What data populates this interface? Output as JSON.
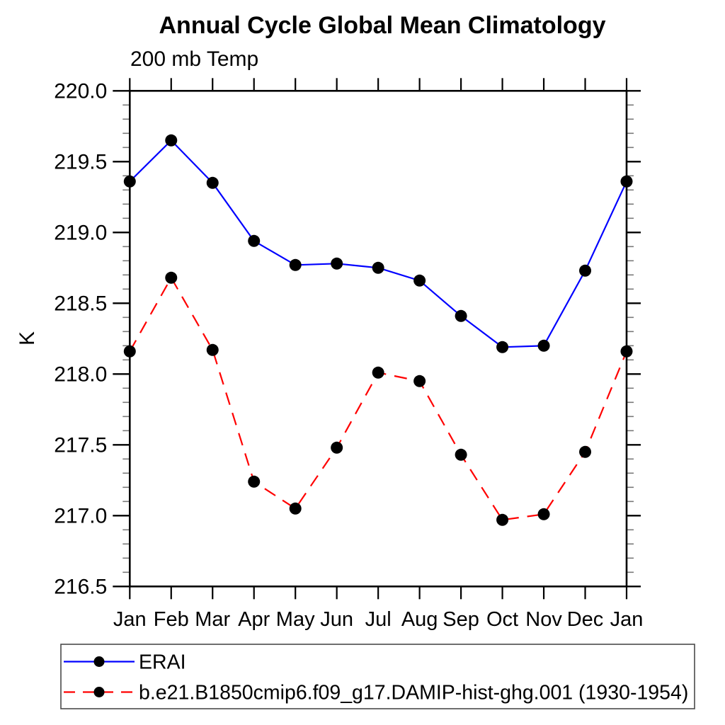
{
  "chart_data": {
    "type": "line",
    "title": "Annual Cycle Global Mean Climatology",
    "subtitle": "200 mb Temp",
    "xlabel": "",
    "ylabel": "K",
    "ylim": [
      216.5,
      220.0
    ],
    "ytick_step": 0.5,
    "ytick_minor_step": 0.1,
    "ytick_labels": [
      "220.0",
      "219.5",
      "219.0",
      "218.5",
      "218.0",
      "217.5",
      "217.0",
      "216.5"
    ],
    "grid": false,
    "legend_position": "bottom",
    "categories": [
      "Jan",
      "Feb",
      "Mar",
      "Apr",
      "May",
      "Jun",
      "Jul",
      "Aug",
      "Sep",
      "Oct",
      "Nov",
      "Dec",
      "Jan"
    ],
    "series": [
      {
        "name": "ERAI",
        "color": "#0000ff",
        "style": "solid",
        "marker": "circle",
        "marker_color": "#000000",
        "values": [
          219.36,
          219.65,
          219.35,
          218.94,
          218.77,
          218.78,
          218.75,
          218.66,
          218.41,
          218.19,
          218.2,
          218.73,
          219.36
        ]
      },
      {
        "name": "b.e21.B1850cmip6.f09_g17.DAMIP-hist-ghg.001 (1930-1954)",
        "color": "#ff0000",
        "style": "dashed",
        "marker": "circle",
        "marker_color": "#000000",
        "values": [
          218.16,
          218.68,
          218.17,
          217.24,
          217.05,
          217.48,
          218.01,
          217.95,
          217.43,
          216.97,
          217.01,
          217.45,
          218.16
        ]
      }
    ]
  }
}
